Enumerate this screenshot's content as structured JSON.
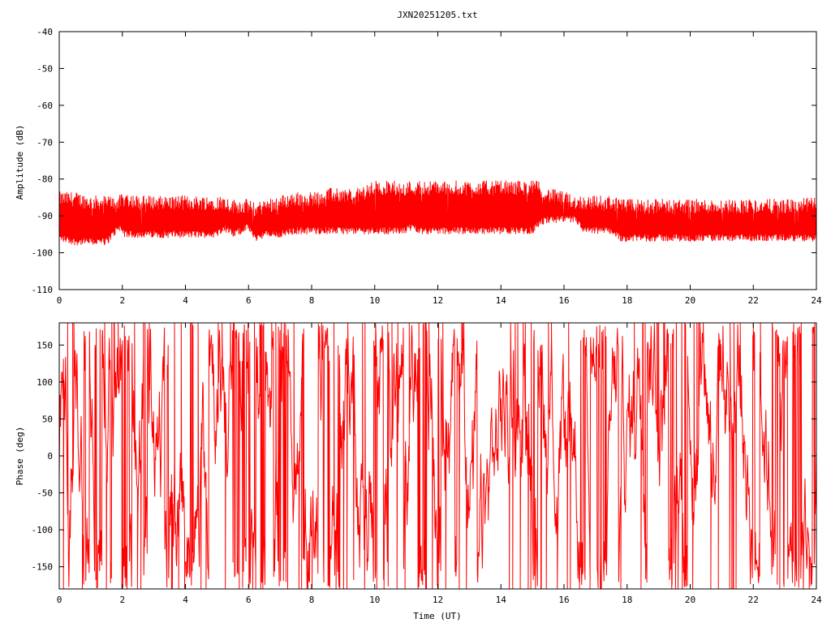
{
  "chart_data": [
    {
      "type": "line",
      "title": "JXN20251205.txt",
      "xlabel": "",
      "ylabel": "Amplitude (dB)",
      "xlim": [
        0,
        24
      ],
      "ylim": [
        -110,
        -40
      ],
      "x_ticks": [
        "0",
        "2",
        "4",
        "6",
        "8",
        "10",
        "12",
        "14",
        "16",
        "18",
        "20",
        "22",
        "24"
      ],
      "y_ticks": [
        "-40",
        "-50",
        "-60",
        "-70",
        "-80",
        "-90",
        "-100",
        "-110"
      ],
      "grid": false,
      "series": [
        {
          "color": "#ff0000",
          "x": [
            0,
            0.5,
            1,
            1.5,
            1.9,
            2.1,
            2.5,
            3,
            3.5,
            4,
            4.5,
            5,
            5.2,
            5.5,
            6,
            6.2,
            6.5,
            7,
            7.5,
            8,
            8.5,
            9,
            9.5,
            10,
            10.5,
            10.9,
            11.2,
            11.5,
            12,
            12.5,
            13,
            13.5,
            14,
            14.5,
            15,
            15.2,
            15.5,
            16,
            16.4,
            16.6,
            17,
            17.5,
            17.8,
            18,
            18.5,
            19,
            19.5,
            20,
            20.5,
            21,
            21.5,
            22,
            22.5,
            23,
            23.5,
            24
          ],
          "upper": [
            -85,
            -85,
            -86,
            -86,
            -86,
            -85,
            -86,
            -86,
            -86,
            -86,
            -86,
            -86,
            -86,
            -87,
            -87,
            -88,
            -87,
            -86,
            -85,
            -85,
            -84,
            -84,
            -84,
            -82,
            -82,
            -82,
            -82,
            -82,
            -82,
            -82,
            -82,
            -82,
            -82,
            -82,
            -82,
            -82,
            -84,
            -85,
            -86,
            -86,
            -86,
            -86,
            -87,
            -87,
            -87,
            -87,
            -87,
            -87,
            -87,
            -87,
            -87,
            -87,
            -87,
            -87,
            -87,
            -86
          ],
          "lower": [
            -96,
            -97,
            -97,
            -97,
            -93,
            -95,
            -95,
            -95,
            -95,
            -95,
            -95,
            -95,
            -93,
            -95,
            -93,
            -96,
            -95,
            -95,
            -94,
            -94,
            -94,
            -94,
            -94,
            -94,
            -94,
            -94,
            -93,
            -94,
            -94,
            -94,
            -94,
            -94,
            -94,
            -94,
            -94,
            -92,
            -91,
            -91,
            -91,
            -94,
            -94,
            -94,
            -96,
            -96,
            -96,
            -96,
            -96,
            -96,
            -96,
            -96,
            -96,
            -96,
            -96,
            -96,
            -96,
            -96
          ]
        }
      ]
    },
    {
      "type": "line",
      "title": "",
      "xlabel": "Time (UT)",
      "ylabel": "Phase (deg)",
      "xlim": [
        0,
        24
      ],
      "ylim": [
        -180,
        180
      ],
      "x_ticks": [
        "0",
        "2",
        "4",
        "6",
        "8",
        "10",
        "12",
        "14",
        "16",
        "18",
        "20",
        "22",
        "24"
      ],
      "y_ticks": [
        "150",
        "100",
        "50",
        "0",
        "-50",
        "-100",
        "-150"
      ],
      "grid": false,
      "series": [
        {
          "color": "#ff0000",
          "x_range": [
            0,
            24
          ],
          "y_range": [
            -180,
            180
          ]
        }
      ]
    }
  ]
}
